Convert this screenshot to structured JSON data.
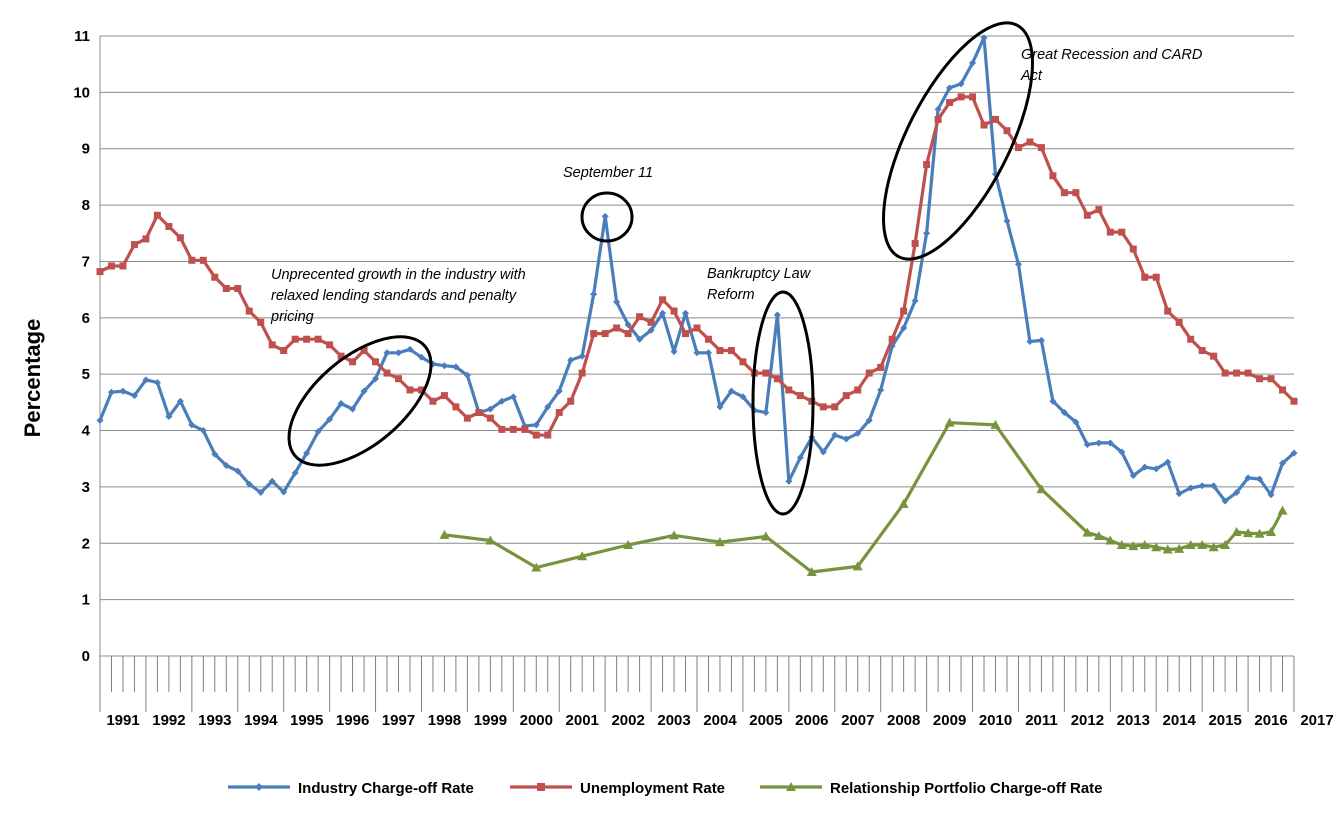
{
  "chart_data": {
    "type": "line",
    "ylabel": "Percentage",
    "ylim": [
      0,
      11
    ],
    "yticks": [
      "0",
      "1",
      "2",
      "3",
      "4",
      "5",
      "6",
      "7",
      "8",
      "9",
      "10",
      "11"
    ],
    "x_start": 1991.0,
    "x_end": 2017.0,
    "year_labels": [
      "1991",
      "1992",
      "1993",
      "1994",
      "1995",
      "1996",
      "1997",
      "1998",
      "1999",
      "2000",
      "2001",
      "2002",
      "2003",
      "2004",
      "2005",
      "2006",
      "2007",
      "2008",
      "2009",
      "2010",
      "2011",
      "2012",
      "2013",
      "2014",
      "2015",
      "2016",
      "2017"
    ],
    "grid": "horizontal",
    "legend_position": "bottom",
    "annotations": [
      "Unprecented growth in the industry with relaxed lending standards and penalty pricing",
      "September 11",
      "Bankruptcy Law Reform",
      "Great Recession and CARD Act"
    ],
    "series": [
      {
        "name": "Industry Charge-off Rate",
        "color": "#4a7ebb",
        "marker": "diamond",
        "points": [
          [
            1991.0,
            4.18
          ],
          [
            1991.25,
            4.68
          ],
          [
            1991.5,
            4.7
          ],
          [
            1991.75,
            4.62
          ],
          [
            1992.0,
            4.9
          ],
          [
            1992.25,
            4.85
          ],
          [
            1992.5,
            4.25
          ],
          [
            1992.75,
            4.52
          ],
          [
            1993.0,
            4.1
          ],
          [
            1993.25,
            4.0
          ],
          [
            1993.5,
            3.58
          ],
          [
            1993.75,
            3.38
          ],
          [
            1994.0,
            3.28
          ],
          [
            1994.25,
            3.05
          ],
          [
            1994.5,
            2.9
          ],
          [
            1994.75,
            3.1
          ],
          [
            1995.0,
            2.91
          ],
          [
            1995.25,
            3.25
          ],
          [
            1995.5,
            3.6
          ],
          [
            1995.75,
            3.98
          ],
          [
            1996.0,
            4.2
          ],
          [
            1996.25,
            4.48
          ],
          [
            1996.5,
            4.38
          ],
          [
            1996.75,
            4.7
          ],
          [
            1997.0,
            4.92
          ],
          [
            1997.25,
            5.38
          ],
          [
            1997.5,
            5.38
          ],
          [
            1997.75,
            5.44
          ],
          [
            1998.0,
            5.3
          ],
          [
            1998.25,
            5.18
          ],
          [
            1998.5,
            5.15
          ],
          [
            1998.75,
            5.13
          ],
          [
            1999.0,
            4.98
          ],
          [
            1999.25,
            4.32
          ],
          [
            1999.5,
            4.38
          ],
          [
            1999.75,
            4.52
          ],
          [
            2000.0,
            4.6
          ],
          [
            2000.25,
            4.08
          ],
          [
            2000.5,
            4.1
          ],
          [
            2000.75,
            4.42
          ],
          [
            2001.0,
            4.7
          ],
          [
            2001.25,
            5.25
          ],
          [
            2001.5,
            5.32
          ],
          [
            2001.75,
            6.42
          ],
          [
            2002.0,
            7.8
          ],
          [
            2002.25,
            6.28
          ],
          [
            2002.5,
            5.88
          ],
          [
            2002.75,
            5.62
          ],
          [
            2003.0,
            5.78
          ],
          [
            2003.25,
            6.08
          ],
          [
            2003.5,
            5.4
          ],
          [
            2003.75,
            6.08
          ],
          [
            2004.0,
            5.38
          ],
          [
            2004.25,
            5.38
          ],
          [
            2004.5,
            4.42
          ],
          [
            2004.75,
            4.7
          ],
          [
            2005.0,
            4.6
          ],
          [
            2005.25,
            4.36
          ],
          [
            2005.5,
            4.32
          ],
          [
            2005.75,
            6.05
          ],
          [
            2006.0,
            3.1
          ],
          [
            2006.25,
            3.52
          ],
          [
            2006.5,
            3.88
          ],
          [
            2006.75,
            3.62
          ],
          [
            2007.0,
            3.92
          ],
          [
            2007.25,
            3.85
          ],
          [
            2007.5,
            3.95
          ],
          [
            2007.75,
            4.18
          ],
          [
            2008.0,
            4.72
          ],
          [
            2008.25,
            5.5
          ],
          [
            2008.5,
            5.82
          ],
          [
            2008.75,
            6.3
          ],
          [
            2009.0,
            7.5
          ],
          [
            2009.25,
            9.7
          ],
          [
            2009.5,
            10.08
          ],
          [
            2009.75,
            10.15
          ],
          [
            2010.0,
            10.52
          ],
          [
            2010.25,
            10.97
          ],
          [
            2010.5,
            8.55
          ],
          [
            2010.75,
            7.72
          ],
          [
            2011.0,
            6.95
          ],
          [
            2011.25,
            5.58
          ],
          [
            2011.5,
            5.6
          ],
          [
            2011.75,
            4.52
          ],
          [
            2012.0,
            4.32
          ],
          [
            2012.25,
            4.15
          ],
          [
            2012.5,
            3.75
          ],
          [
            2012.75,
            3.78
          ],
          [
            2013.0,
            3.78
          ],
          [
            2013.25,
            3.62
          ],
          [
            2013.5,
            3.2
          ],
          [
            2013.75,
            3.35
          ],
          [
            2014.0,
            3.32
          ],
          [
            2014.25,
            3.44
          ],
          [
            2014.5,
            2.88
          ],
          [
            2014.75,
            2.98
          ],
          [
            2015.0,
            3.02
          ],
          [
            2015.25,
            3.02
          ],
          [
            2015.5,
            2.75
          ],
          [
            2015.75,
            2.9
          ],
          [
            2016.0,
            3.16
          ],
          [
            2016.25,
            3.14
          ],
          [
            2016.5,
            2.86
          ],
          [
            2016.75,
            3.42
          ],
          [
            2017.0,
            3.6
          ]
        ]
      },
      {
        "name": "Unemployment Rate",
        "color": "#c0504d",
        "marker": "square",
        "points": [
          [
            1991.0,
            6.82
          ],
          [
            1991.25,
            6.92
          ],
          [
            1991.5,
            6.92
          ],
          [
            1991.75,
            7.3
          ],
          [
            1992.0,
            7.4
          ],
          [
            1992.25,
            7.82
          ],
          [
            1992.5,
            7.62
          ],
          [
            1992.75,
            7.42
          ],
          [
            1993.0,
            7.02
          ],
          [
            1993.25,
            7.02
          ],
          [
            1993.5,
            6.72
          ],
          [
            1993.75,
            6.52
          ],
          [
            1994.0,
            6.52
          ],
          [
            1994.25,
            6.12
          ],
          [
            1994.5,
            5.92
          ],
          [
            1994.75,
            5.52
          ],
          [
            1995.0,
            5.42
          ],
          [
            1995.25,
            5.62
          ],
          [
            1995.5,
            5.62
          ],
          [
            1995.75,
            5.62
          ],
          [
            1996.0,
            5.52
          ],
          [
            1996.25,
            5.32
          ],
          [
            1996.5,
            5.22
          ],
          [
            1996.75,
            5.42
          ],
          [
            1997.0,
            5.22
          ],
          [
            1997.25,
            5.02
          ],
          [
            1997.5,
            4.92
          ],
          [
            1997.75,
            4.72
          ],
          [
            1998.0,
            4.72
          ],
          [
            1998.25,
            4.52
          ],
          [
            1998.5,
            4.62
          ],
          [
            1998.75,
            4.42
          ],
          [
            1999.0,
            4.22
          ],
          [
            1999.25,
            4.32
          ],
          [
            1999.5,
            4.22
          ],
          [
            1999.75,
            4.02
          ],
          [
            2000.0,
            4.02
          ],
          [
            2000.25,
            4.02
          ],
          [
            2000.5,
            3.92
          ],
          [
            2000.75,
            3.92
          ],
          [
            2001.0,
            4.32
          ],
          [
            2001.25,
            4.52
          ],
          [
            2001.5,
            5.02
          ],
          [
            2001.75,
            5.72
          ],
          [
            2002.0,
            5.72
          ],
          [
            2002.25,
            5.82
          ],
          [
            2002.5,
            5.72
          ],
          [
            2002.75,
            6.02
          ],
          [
            2003.0,
            5.92
          ],
          [
            2003.25,
            6.32
          ],
          [
            2003.5,
            6.12
          ],
          [
            2003.75,
            5.72
          ],
          [
            2004.0,
            5.82
          ],
          [
            2004.25,
            5.62
          ],
          [
            2004.5,
            5.42
          ],
          [
            2004.75,
            5.42
          ],
          [
            2005.0,
            5.22
          ],
          [
            2005.25,
            5.02
          ],
          [
            2005.5,
            5.02
          ],
          [
            2005.75,
            4.92
          ],
          [
            2006.0,
            4.72
          ],
          [
            2006.25,
            4.62
          ],
          [
            2006.5,
            4.52
          ],
          [
            2006.75,
            4.42
          ],
          [
            2007.0,
            4.42
          ],
          [
            2007.25,
            4.62
          ],
          [
            2007.5,
            4.72
          ],
          [
            2007.75,
            5.02
          ],
          [
            2008.0,
            5.12
          ],
          [
            2008.25,
            5.62
          ],
          [
            2008.5,
            6.12
          ],
          [
            2008.75,
            7.32
          ],
          [
            2009.0,
            8.72
          ],
          [
            2009.25,
            9.52
          ],
          [
            2009.5,
            9.82
          ],
          [
            2009.75,
            9.92
          ],
          [
            2010.0,
            9.92
          ],
          [
            2010.25,
            9.42
          ],
          [
            2010.5,
            9.52
          ],
          [
            2010.75,
            9.32
          ],
          [
            2011.0,
            9.02
          ],
          [
            2011.25,
            9.12
          ],
          [
            2011.5,
            9.02
          ],
          [
            2011.75,
            8.52
          ],
          [
            2012.0,
            8.22
          ],
          [
            2012.25,
            8.22
          ],
          [
            2012.5,
            7.82
          ],
          [
            2012.75,
            7.92
          ],
          [
            2013.0,
            7.52
          ],
          [
            2013.25,
            7.52
          ],
          [
            2013.5,
            7.22
          ],
          [
            2013.75,
            6.72
          ],
          [
            2014.0,
            6.72
          ],
          [
            2014.25,
            6.12
          ],
          [
            2014.5,
            5.92
          ],
          [
            2014.75,
            5.62
          ],
          [
            2015.0,
            5.42
          ],
          [
            2015.25,
            5.32
          ],
          [
            2015.5,
            5.02
          ],
          [
            2015.75,
            5.02
          ],
          [
            2016.0,
            5.02
          ],
          [
            2016.25,
            4.92
          ],
          [
            2016.5,
            4.92
          ],
          [
            2016.75,
            4.72
          ],
          [
            2017.0,
            4.52
          ]
        ]
      },
      {
        "name": "Relationship Portfolio Charge-off Rate",
        "color": "#77933c",
        "marker": "triangle",
        "points": [
          [
            1998.5,
            2.15
          ],
          [
            1999.5,
            2.05
          ],
          [
            2000.5,
            1.57
          ],
          [
            2001.5,
            1.77
          ],
          [
            2002.5,
            1.97
          ],
          [
            2003.5,
            2.14
          ],
          [
            2004.5,
            2.02
          ],
          [
            2005.5,
            2.12
          ],
          [
            2006.5,
            1.49
          ],
          [
            2007.5,
            1.59
          ],
          [
            2008.5,
            2.7
          ],
          [
            2009.5,
            4.14
          ],
          [
            2010.5,
            4.1
          ],
          [
            2011.5,
            2.96
          ],
          [
            2012.5,
            2.19
          ],
          [
            2012.75,
            2.13
          ],
          [
            2013.0,
            2.05
          ],
          [
            2013.25,
            1.97
          ],
          [
            2013.5,
            1.95
          ],
          [
            2013.75,
            1.97
          ],
          [
            2014.0,
            1.93
          ],
          [
            2014.25,
            1.89
          ],
          [
            2014.5,
            1.9
          ],
          [
            2014.75,
            1.97
          ],
          [
            2015.0,
            1.97
          ],
          [
            2015.25,
            1.93
          ],
          [
            2015.5,
            1.97
          ],
          [
            2015.75,
            2.2
          ],
          [
            2016.0,
            2.18
          ],
          [
            2016.25,
            2.17
          ],
          [
            2016.5,
            2.2
          ],
          [
            2016.75,
            2.58
          ]
        ]
      }
    ]
  }
}
